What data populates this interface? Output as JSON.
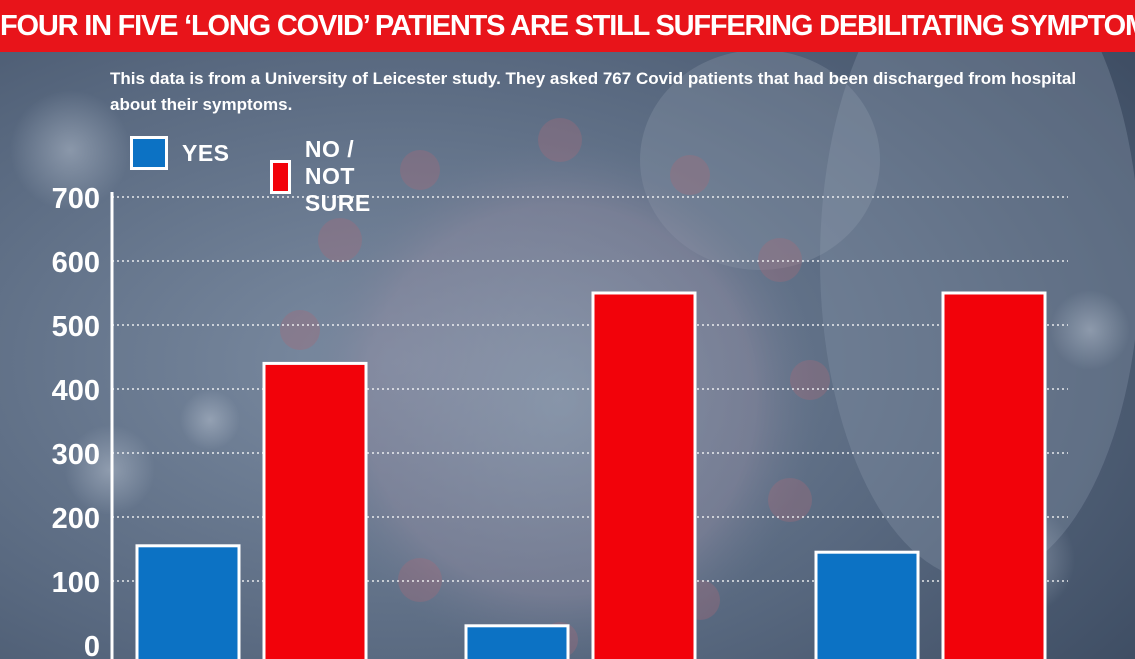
{
  "headline": "FOUR IN FIVE ‘LONG COVID’ PATIENTS ARE STILL SUFFERING DEBILITATING SYMPTOMS FIVE MONTHS LATER",
  "subtitle": "This data is from a University of Leicester study. They asked 767 Covid patients that had been discharged from hospital about their symptoms.",
  "colors": {
    "yes": "#0c72c4",
    "no": "#f2020a",
    "headline": "#e8141a"
  },
  "chart_data": {
    "type": "bar",
    "categories": [
      "",
      "",
      ""
    ],
    "series": [
      {
        "name": "YES",
        "values": [
          155,
          30,
          145
        ]
      },
      {
        "name": "NO / NOT SURE",
        "values": [
          440,
          550,
          550
        ]
      }
    ],
    "ylim": [
      0,
      700
    ],
    "yticks": [
      "0",
      "100",
      "200",
      "300",
      "400",
      "500",
      "600",
      "700"
    ],
    "grid": true,
    "legend": "top-left"
  }
}
